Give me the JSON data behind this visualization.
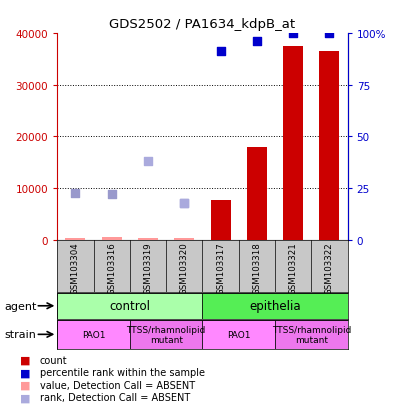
{
  "title": "GDS2502 / PA1634_kdpB_at",
  "samples": [
    "GSM103304",
    "GSM103316",
    "GSM103319",
    "GSM103320",
    "GSM103317",
    "GSM103318",
    "GSM103321",
    "GSM103322"
  ],
  "count_values": [
    400,
    500,
    300,
    400,
    7800,
    18000,
    37500,
    36500
  ],
  "count_absent": [
    true,
    true,
    true,
    true,
    false,
    false,
    false,
    false
  ],
  "percentile_values": [
    9000,
    8800,
    null,
    7200,
    36500,
    38500,
    40000,
    40000
  ],
  "percentile_absent": [
    true,
    true,
    false,
    true,
    false,
    false,
    false,
    false
  ],
  "rank_absent_values": [
    null,
    null,
    15200,
    7200,
    null,
    null,
    null,
    null
  ],
  "ylim_left": [
    0,
    40000
  ],
  "ylim_right": [
    0,
    100
  ],
  "yticks_left": [
    0,
    10000,
    20000,
    30000,
    40000
  ],
  "yticks_right": [
    0,
    25,
    50,
    75,
    100
  ],
  "yticklabels_right": [
    "0",
    "25",
    "50",
    "75",
    "100%"
  ],
  "agent_groups": [
    {
      "label": "control",
      "start": 0,
      "end": 4,
      "color": "#AAFFAA"
    },
    {
      "label": "epithelia",
      "start": 4,
      "end": 8,
      "color": "#55EE55"
    }
  ],
  "strain_groups": [
    {
      "label": "PAO1",
      "start": 0,
      "end": 2,
      "color": "#FF88FF"
    },
    {
      "label": "TTSS/rhamnolipid\nmutant",
      "start": 2,
      "end": 4,
      "color": "#EE77EE"
    },
    {
      "label": "PAO1",
      "start": 4,
      "end": 6,
      "color": "#FF88FF"
    },
    {
      "label": "TTSS/rhamnolipid\nmutant",
      "start": 6,
      "end": 8,
      "color": "#EE77EE"
    }
  ],
  "bar_color": "#CC0000",
  "bar_absent_color": "#FF9999",
  "dot_color": "#0000CC",
  "dot_absent_color": "#9999CC",
  "rank_absent_color": "#AAAADD",
  "bg_color": "#C8C8C8",
  "label_color_left": "#CC0000",
  "label_color_right": "#0000CC"
}
